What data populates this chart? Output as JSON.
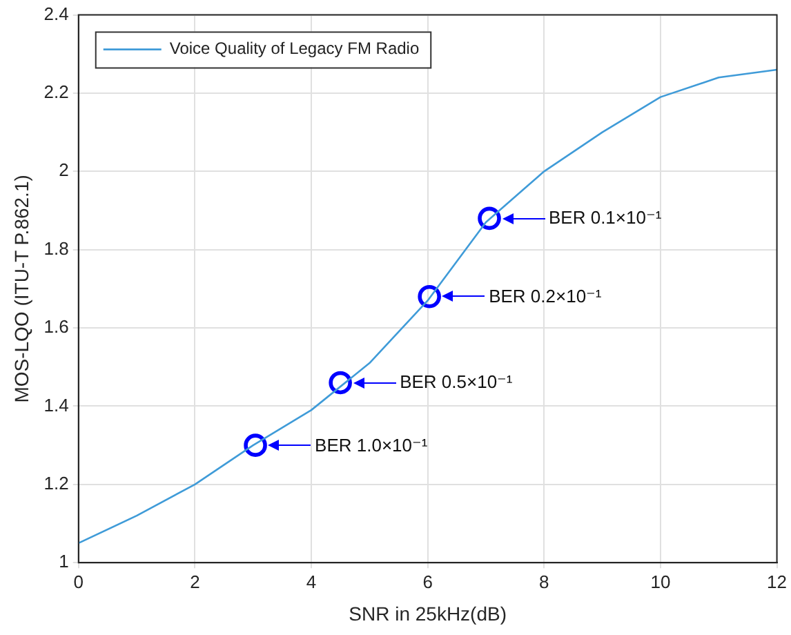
{
  "chart_data": {
    "type": "line",
    "xlabel": "SNR in 25kHz(dB)",
    "ylabel": "MOS-LQO (ITU-T P.862.1)",
    "xlim": [
      0,
      12
    ],
    "xticks": [
      0,
      2,
      4,
      6,
      8,
      10,
      12
    ],
    "ylim": [
      1,
      2.4
    ],
    "yticks": [
      1,
      1.2,
      1.4,
      1.6,
      1.8,
      2,
      2.2,
      2.4
    ],
    "grid": true,
    "legend": "top left",
    "series": [
      {
        "name": "Voice Quality of Legacy FM Radio",
        "type": "line",
        "color": "#3f9bd8",
        "marker": "none",
        "x": [
          0,
          1,
          2,
          3,
          4,
          5,
          6,
          7,
          8,
          9,
          10,
          11,
          12
        ],
        "values": [
          1.05,
          1.12,
          1.2,
          1.3,
          1.39,
          1.51,
          1.67,
          1.87,
          2.0,
          2.1,
          2.19,
          2.24,
          2.26
        ]
      },
      {
        "type": "scatter",
        "color": "#0000ff",
        "marker": "circle",
        "x": [
          3.04,
          4.5,
          6.03,
          7.06
        ],
        "values": [
          1.3,
          1.46,
          1.68,
          1.88
        ]
      }
    ],
    "annotations": [
      "BER 1.0×10⁻¹",
      "BER 0.5×10⁻¹",
      "BER 0.2×10⁻¹",
      "BER 0.1×10⁻¹"
    ]
  }
}
